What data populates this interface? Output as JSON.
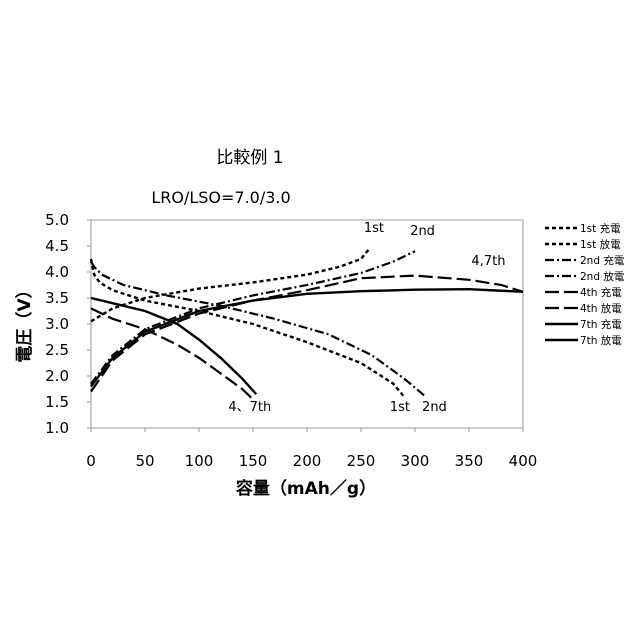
{
  "chart_data": {
    "type": "line",
    "title": "比較例 1",
    "subtitle": "LRO/LSO=7.0/3.0",
    "xlabel": "容量（mAh／g）",
    "ylabel": "電圧（V）",
    "xlim": [
      0,
      400
    ],
    "ylim": [
      1.0,
      5.0
    ],
    "x_ticks": [
      "0",
      "50",
      "100",
      "150",
      "200",
      "250",
      "300",
      "350",
      "400"
    ],
    "y_ticks": [
      "1.0",
      "1.5",
      "2.0",
      "2.5",
      "3.0",
      "3.5",
      "4.0",
      "4.5",
      "5.0"
    ],
    "grid": false,
    "legend_position": "right",
    "series": [
      {
        "name": "1st 充電",
        "dash": "4,3",
        "width": 2.4,
        "points": [
          [
            0,
            3.05
          ],
          [
            20,
            3.3
          ],
          [
            50,
            3.5
          ],
          [
            100,
            3.68
          ],
          [
            150,
            3.8
          ],
          [
            200,
            3.95
          ],
          [
            230,
            4.1
          ],
          [
            250,
            4.25
          ],
          [
            255,
            4.38
          ],
          [
            258,
            4.45
          ]
        ]
      },
      {
        "name": "1st 放電",
        "dash": "4,3",
        "width": 2.4,
        "points": [
          [
            0,
            4.25
          ],
          [
            3,
            3.95
          ],
          [
            8,
            3.8
          ],
          [
            20,
            3.65
          ],
          [
            50,
            3.45
          ],
          [
            100,
            3.25
          ],
          [
            150,
            3.0
          ],
          [
            200,
            2.65
          ],
          [
            250,
            2.25
          ],
          [
            280,
            1.85
          ],
          [
            290,
            1.6
          ]
        ]
      },
      {
        "name": "2nd 充電",
        "dash": "9,3,2,3",
        "width": 2.2,
        "points": [
          [
            0,
            1.85
          ],
          [
            20,
            2.4
          ],
          [
            50,
            2.9
          ],
          [
            100,
            3.3
          ],
          [
            150,
            3.55
          ],
          [
            200,
            3.75
          ],
          [
            250,
            3.98
          ],
          [
            280,
            4.2
          ],
          [
            300,
            4.4
          ]
        ]
      },
      {
        "name": "2nd 放電",
        "dash": "9,3,2,3",
        "width": 2.2,
        "points": [
          [
            0,
            4.2
          ],
          [
            3,
            4.1
          ],
          [
            10,
            3.95
          ],
          [
            30,
            3.75
          ],
          [
            70,
            3.55
          ],
          [
            120,
            3.35
          ],
          [
            170,
            3.1
          ],
          [
            220,
            2.8
          ],
          [
            260,
            2.4
          ],
          [
            290,
            1.95
          ],
          [
            310,
            1.6
          ]
        ]
      },
      {
        "name": "4th 充電",
        "dash": "14,5",
        "width": 2.2,
        "points": [
          [
            0,
            1.7
          ],
          [
            20,
            2.3
          ],
          [
            50,
            2.8
          ],
          [
            100,
            3.2
          ],
          [
            150,
            3.45
          ],
          [
            200,
            3.65
          ],
          [
            250,
            3.88
          ],
          [
            300,
            3.93
          ],
          [
            350,
            3.85
          ],
          [
            380,
            3.75
          ],
          [
            400,
            3.62
          ]
        ]
      },
      {
        "name": "4th 放電",
        "dash": "14,5",
        "width": 2.2,
        "points": [
          [
            0,
            3.3
          ],
          [
            20,
            3.1
          ],
          [
            50,
            2.9
          ],
          [
            80,
            2.6
          ],
          [
            100,
            2.35
          ],
          [
            120,
            2.05
          ],
          [
            140,
            1.75
          ],
          [
            150,
            1.55
          ]
        ]
      },
      {
        "name": "7th 充電",
        "dash": "",
        "width": 2.4,
        "points": [
          [
            0,
            1.8
          ],
          [
            20,
            2.35
          ],
          [
            50,
            2.85
          ],
          [
            100,
            3.25
          ],
          [
            150,
            3.45
          ],
          [
            200,
            3.58
          ],
          [
            250,
            3.63
          ],
          [
            300,
            3.66
          ],
          [
            350,
            3.67
          ],
          [
            400,
            3.62
          ]
        ]
      },
      {
        "name": "7th 放電",
        "dash": "",
        "width": 2.4,
        "points": [
          [
            0,
            3.5
          ],
          [
            20,
            3.4
          ],
          [
            50,
            3.25
          ],
          [
            80,
            3.0
          ],
          [
            100,
            2.7
          ],
          [
            120,
            2.35
          ],
          [
            140,
            1.95
          ],
          [
            153,
            1.65
          ]
        ]
      }
    ],
    "annotations": [
      {
        "text": "1st",
        "x": 262,
        "y": 4.77
      },
      {
        "text": "2nd",
        "x": 307,
        "y": 4.71
      },
      {
        "text": "4,7th",
        "x": 368,
        "y": 4.13
      },
      {
        "text": "4、7th",
        "x": 147,
        "y": 1.33
      },
      {
        "text": "1st",
        "x": 286,
        "y": 1.33
      },
      {
        "text": "2nd",
        "x": 318,
        "y": 1.33
      }
    ]
  }
}
